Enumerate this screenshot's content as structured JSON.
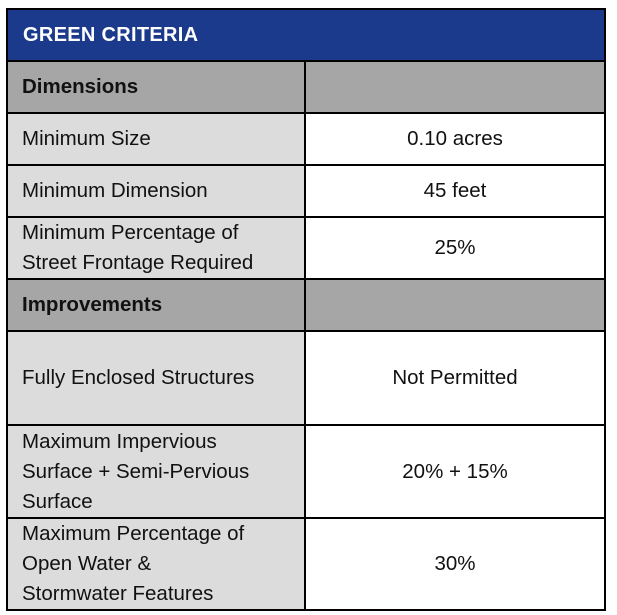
{
  "table": {
    "title": "GREEN CRITERIA",
    "sections": {
      "dimensions": "Dimensions",
      "improvements": "Improvements"
    },
    "rows": {
      "min_size": {
        "label": "Minimum Size",
        "value": "0.10 acres"
      },
      "min_dimension": {
        "label": "Minimum Dimension",
        "value": "45 feet"
      },
      "min_frontage": {
        "label_1": "Minimum Percentage of",
        "label_2": "Street Frontage Required",
        "value": "25%"
      },
      "enclosed": {
        "label": "Fully Enclosed Structures",
        "value": "Not Permitted"
      },
      "impervious": {
        "label_1": "Maximum Impervious",
        "label_2": "Surface + Semi-Pervious",
        "label_3": "Surface",
        "value": "20% + 15%"
      },
      "open_water": {
        "label_1": "Maximum Percentage of",
        "label_2": "Open Water &",
        "label_3": "Stormwater Features",
        "value": "30%"
      }
    }
  }
}
